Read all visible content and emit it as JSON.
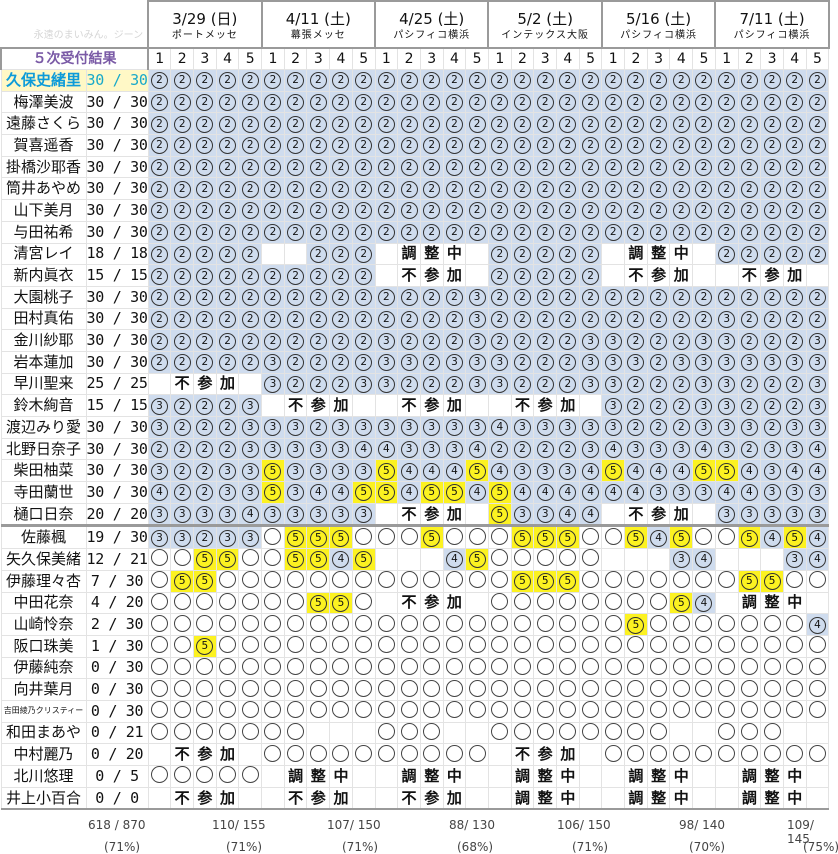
{
  "header": {
    "corner_text": "永遠のまいみん。ジーン",
    "title": "５次受付結果",
    "slot_numbers": [
      "1",
      "2",
      "3",
      "4",
      "5"
    ],
    "events": [
      {
        "date": "3/29 (日)",
        "venue": "ポートメッセ"
      },
      {
        "date": "4/11 (土)",
        "venue": "幕張メッセ"
      },
      {
        "date": "4/25 (土)",
        "venue": "パシフィコ横浜"
      },
      {
        "date": "5/2 (土)",
        "venue": "インテックス大阪"
      },
      {
        "date": "5/16 (土)",
        "venue": "パシフィコ横浜"
      },
      {
        "date": "7/11 (土)",
        "venue": "パシフィコ横浜"
      }
    ]
  },
  "legend": {
    "2": "②",
    "3": "③",
    "4": "④",
    "5": "⑤",
    "o": "",
    "不": "不",
    "参": "参",
    "加": "加",
    "調": "調",
    "整": "整",
    "中": "中"
  },
  "colors": {
    "sold_blue": "#cfdcee",
    "highlight_yellow": "#fcf221",
    "member_highlight_bg": "#fff8c6",
    "member_highlight_text": "#0d9bd9",
    "title_purple": "#7a5aa6"
  },
  "rows": [
    {
      "name": "久保史緒里",
      "score": "30 / 30",
      "highlight": true,
      "cells": [
        "2",
        "2",
        "2",
        "2",
        "2",
        "2",
        "2",
        "2",
        "2",
        "2",
        "2",
        "2",
        "2",
        "2",
        "2",
        "2",
        "2",
        "2",
        "2",
        "2",
        "2",
        "2",
        "2",
        "2",
        "2",
        "2",
        "2",
        "2",
        "2",
        "2"
      ]
    },
    {
      "name": "梅澤美波",
      "score": "30 / 30",
      "cells": [
        "2",
        "2",
        "2",
        "2",
        "2",
        "2",
        "2",
        "2",
        "2",
        "2",
        "2",
        "2",
        "2",
        "2",
        "2",
        "2",
        "2",
        "2",
        "2",
        "2",
        "2",
        "2",
        "2",
        "2",
        "2",
        "2",
        "2",
        "2",
        "2",
        "2"
      ]
    },
    {
      "name": "遠藤さくら",
      "score": "30 / 30",
      "cells": [
        "2",
        "2",
        "2",
        "2",
        "2",
        "2",
        "2",
        "2",
        "2",
        "2",
        "2",
        "2",
        "2",
        "2",
        "2",
        "2",
        "2",
        "2",
        "2",
        "2",
        "2",
        "2",
        "2",
        "2",
        "2",
        "2",
        "2",
        "2",
        "2",
        "2"
      ]
    },
    {
      "name": "賀喜遥香",
      "score": "30 / 30",
      "cells": [
        "2",
        "2",
        "2",
        "2",
        "2",
        "2",
        "2",
        "2",
        "2",
        "2",
        "2",
        "2",
        "2",
        "2",
        "2",
        "2",
        "2",
        "2",
        "2",
        "2",
        "2",
        "2",
        "2",
        "2",
        "2",
        "2",
        "2",
        "2",
        "2",
        "2"
      ]
    },
    {
      "name": "掛橋沙耶香",
      "score": "30 / 30",
      "cells": [
        "2",
        "2",
        "2",
        "2",
        "2",
        "2",
        "2",
        "2",
        "2",
        "2",
        "2",
        "2",
        "2",
        "2",
        "2",
        "2",
        "2",
        "2",
        "2",
        "2",
        "2",
        "2",
        "2",
        "2",
        "2",
        "2",
        "2",
        "2",
        "2",
        "2"
      ]
    },
    {
      "name": "筒井あやめ",
      "score": "30 / 30",
      "cells": [
        "2",
        "2",
        "2",
        "2",
        "2",
        "2",
        "2",
        "2",
        "2",
        "2",
        "2",
        "2",
        "2",
        "2",
        "2",
        "2",
        "2",
        "2",
        "2",
        "2",
        "2",
        "2",
        "2",
        "2",
        "2",
        "2",
        "2",
        "2",
        "2",
        "2"
      ]
    },
    {
      "name": "山下美月",
      "score": "30 / 30",
      "cells": [
        "2",
        "2",
        "2",
        "2",
        "2",
        "2",
        "2",
        "2",
        "2",
        "2",
        "2",
        "2",
        "2",
        "2",
        "2",
        "2",
        "2",
        "2",
        "2",
        "2",
        "2",
        "2",
        "2",
        "2",
        "2",
        "2",
        "2",
        "2",
        "2",
        "2"
      ]
    },
    {
      "name": "与田祐希",
      "score": "30 / 30",
      "cells": [
        "2",
        "2",
        "2",
        "2",
        "2",
        "2",
        "2",
        "2",
        "2",
        "2",
        "2",
        "2",
        "2",
        "2",
        "2",
        "2",
        "2",
        "2",
        "2",
        "2",
        "2",
        "2",
        "2",
        "2",
        "2",
        "2",
        "2",
        "2",
        "2",
        "2"
      ]
    },
    {
      "name": "清宮レイ",
      "score": "18 / 18",
      "cells": [
        "2",
        "2",
        "2",
        "2",
        "2",
        "",
        "",
        "2",
        "2",
        "2",
        "",
        "調",
        "整",
        "中",
        "",
        "2",
        "2",
        "2",
        "2",
        "2",
        "",
        "調",
        "整",
        "中",
        "",
        "2",
        "2",
        "2",
        "2",
        "2"
      ]
    },
    {
      "name": "新内眞衣",
      "score": "15 / 15",
      "cells": [
        "2",
        "2",
        "2",
        "2",
        "2",
        "2",
        "2",
        "2",
        "2",
        "2",
        "",
        "不",
        "参",
        "加",
        "",
        "2",
        "2",
        "2",
        "2",
        "2",
        "",
        "不",
        "参",
        "加",
        "",
        "",
        "不",
        "参",
        "加",
        ""
      ]
    },
    {
      "name": "大園桃子",
      "score": "30 / 30",
      "cells": [
        "2",
        "2",
        "2",
        "2",
        "2",
        "2",
        "2",
        "2",
        "2",
        "2",
        "2",
        "2",
        "2",
        "2",
        "3",
        "2",
        "2",
        "2",
        "2",
        "2",
        "2",
        "2",
        "2",
        "2",
        "2",
        "2",
        "2",
        "2",
        "2",
        "2"
      ]
    },
    {
      "name": "田村真佑",
      "score": "30 / 30",
      "cells": [
        "2",
        "2",
        "2",
        "2",
        "2",
        "2",
        "2",
        "2",
        "2",
        "2",
        "2",
        "2",
        "2",
        "2",
        "3",
        "2",
        "2",
        "2",
        "2",
        "2",
        "2",
        "2",
        "2",
        "2",
        "2",
        "3",
        "2",
        "2",
        "2",
        "2"
      ]
    },
    {
      "name": "金川紗耶",
      "score": "30 / 30",
      "cells": [
        "2",
        "2",
        "2",
        "2",
        "2",
        "2",
        "2",
        "2",
        "2",
        "2",
        "3",
        "2",
        "2",
        "2",
        "3",
        "2",
        "2",
        "2",
        "2",
        "3",
        "3",
        "2",
        "2",
        "2",
        "3",
        "3",
        "2",
        "2",
        "2",
        "3"
      ]
    },
    {
      "name": "岩本蓮加",
      "score": "30 / 30",
      "cells": [
        "2",
        "2",
        "2",
        "2",
        "2",
        "3",
        "2",
        "2",
        "2",
        "2",
        "3",
        "3",
        "2",
        "3",
        "3",
        "3",
        "2",
        "2",
        "2",
        "3",
        "3",
        "3",
        "2",
        "3",
        "3",
        "3",
        "3",
        "3",
        "3",
        "3"
      ]
    },
    {
      "name": "早川聖来",
      "score": "25 / 25",
      "cells": [
        "",
        "不",
        "参",
        "加",
        "",
        "3",
        "2",
        "2",
        "2",
        "3",
        "3",
        "2",
        "2",
        "2",
        "3",
        "3",
        "2",
        "2",
        "2",
        "3",
        "3",
        "2",
        "2",
        "2",
        "3",
        "3",
        "2",
        "2",
        "2",
        "3"
      ]
    },
    {
      "name": "鈴木絢音",
      "score": "15 / 15",
      "cells": [
        "3",
        "2",
        "2",
        "2",
        "3",
        "",
        "不",
        "参",
        "加",
        "",
        "",
        "不",
        "参",
        "加",
        "",
        "",
        "不",
        "参",
        "加",
        "",
        "3",
        "2",
        "2",
        "2",
        "3",
        "3",
        "2",
        "2",
        "2",
        "3"
      ]
    },
    {
      "name": "渡辺みり愛",
      "score": "30 / 30",
      "cells": [
        "3",
        "2",
        "2",
        "2",
        "3",
        "3",
        "3",
        "2",
        "3",
        "3",
        "3",
        "3",
        "3",
        "3",
        "3",
        "4",
        "3",
        "3",
        "3",
        "3",
        "3",
        "2",
        "2",
        "2",
        "3",
        "3",
        "3",
        "2",
        "3",
        "3"
      ]
    },
    {
      "name": "北野日奈子",
      "score": "30 / 30",
      "cells": [
        "2",
        "2",
        "2",
        "2",
        "3",
        "3",
        "3",
        "3",
        "3",
        "4",
        "4",
        "3",
        "3",
        "3",
        "4",
        "2",
        "2",
        "2",
        "2",
        "3",
        "4",
        "3",
        "3",
        "3",
        "4",
        "3",
        "2",
        "3",
        "3",
        "4"
      ]
    },
    {
      "name": "柴田柚菜",
      "score": "30 / 30",
      "cells": [
        "3",
        "2",
        "2",
        "3",
        "3",
        "5",
        "3",
        "3",
        "3",
        "3",
        "5",
        "4",
        "4",
        "4",
        "5",
        "4",
        "3",
        "3",
        "3",
        "4",
        "5",
        "4",
        "4",
        "4",
        "5",
        "5",
        "4",
        "3",
        "4",
        "4"
      ]
    },
    {
      "name": "寺田蘭世",
      "score": "30 / 30",
      "cells": [
        "4",
        "2",
        "2",
        "3",
        "3",
        "5",
        "3",
        "4",
        "4",
        "5",
        "5",
        "4",
        "5",
        "5",
        "4",
        "5",
        "4",
        "4",
        "4",
        "4",
        "4",
        "4",
        "3",
        "3",
        "3",
        "4",
        "4",
        "3",
        "3",
        "3"
      ]
    },
    {
      "name": "樋口日奈",
      "score": "20 / 20",
      "sep": true,
      "cells": [
        "3",
        "3",
        "3",
        "3",
        "4",
        "3",
        "3",
        "3",
        "3",
        "3",
        "",
        "不",
        "参",
        "加",
        "",
        "5",
        "3",
        "3",
        "4",
        "4",
        "",
        "不",
        "参",
        "加",
        "",
        "3",
        "3",
        "3",
        "3",
        "3"
      ]
    },
    {
      "name": "佐藤楓",
      "score": "19 / 30",
      "cells": [
        "3",
        "3",
        "2",
        "3",
        "3",
        "o",
        "5",
        "5",
        "5",
        "o",
        "o",
        "o",
        "5",
        "o",
        "o",
        "o",
        "5",
        "5",
        "5",
        "o",
        "o",
        "5",
        "4",
        "5",
        "o",
        "o",
        "5",
        "4",
        "5",
        "4"
      ]
    },
    {
      "name": "矢久保美緒",
      "score": "12 / 21",
      "cells": [
        "o",
        "o",
        "5",
        "5",
        "o",
        "o",
        "5",
        "5",
        "4",
        "5",
        "",
        "",
        "",
        "4",
        "5",
        "o",
        "o",
        "o",
        "o",
        "o",
        "",
        "",
        "",
        "3",
        "4",
        "",
        "",
        "",
        "3",
        "4"
      ]
    },
    {
      "name": "伊藤理々杏",
      "score": "7 / 30",
      "cells": [
        "o",
        "5",
        "5",
        "o",
        "o",
        "o",
        "o",
        "o",
        "o",
        "o",
        "o",
        "o",
        "o",
        "o",
        "o",
        "o",
        "5",
        "5",
        "5",
        "o",
        "o",
        "o",
        "o",
        "o",
        "o",
        "o",
        "5",
        "5",
        "o",
        "o"
      ]
    },
    {
      "name": "中田花奈",
      "score": "4 / 20",
      "cells": [
        "o",
        "o",
        "o",
        "o",
        "o",
        "o",
        "o",
        "5",
        "5",
        "o",
        "",
        "不",
        "参",
        "加",
        "",
        "o",
        "o",
        "o",
        "o",
        "o",
        "o",
        "o",
        "o",
        "5",
        "4",
        "",
        "調",
        "整",
        "中",
        ""
      ]
    },
    {
      "name": "山崎怜奈",
      "score": "2 / 30",
      "cells": [
        "o",
        "o",
        "o",
        "o",
        "o",
        "o",
        "o",
        "o",
        "o",
        "o",
        "o",
        "o",
        "o",
        "o",
        "o",
        "o",
        "o",
        "o",
        "o",
        "o",
        "o",
        "5",
        "o",
        "o",
        "o",
        "o",
        "o",
        "o",
        "o",
        "4"
      ]
    },
    {
      "name": "阪口珠美",
      "score": "1 / 30",
      "cells": [
        "o",
        "o",
        "5",
        "o",
        "o",
        "o",
        "o",
        "o",
        "o",
        "o",
        "o",
        "o",
        "o",
        "o",
        "o",
        "o",
        "o",
        "o",
        "o",
        "o",
        "o",
        "o",
        "o",
        "o",
        "o",
        "o",
        "o",
        "o",
        "o",
        "o"
      ]
    },
    {
      "name": "伊藤純奈",
      "score": "0 / 30",
      "cells": [
        "o",
        "o",
        "o",
        "o",
        "o",
        "o",
        "o",
        "o",
        "o",
        "o",
        "o",
        "o",
        "o",
        "o",
        "o",
        "o",
        "o",
        "o",
        "o",
        "o",
        "o",
        "o",
        "o",
        "o",
        "o",
        "o",
        "o",
        "o",
        "o",
        "o"
      ]
    },
    {
      "name": "向井葉月",
      "score": "0 / 30",
      "cells": [
        "o",
        "o",
        "o",
        "o",
        "o",
        "o",
        "o",
        "o",
        "o",
        "o",
        "o",
        "o",
        "o",
        "o",
        "o",
        "o",
        "o",
        "o",
        "o",
        "o",
        "o",
        "o",
        "o",
        "o",
        "o",
        "o",
        "o",
        "o",
        "o",
        "o"
      ]
    },
    {
      "name": "吉田綾乃クリスティー",
      "score": "0 / 30",
      "small": true,
      "cells": [
        "o",
        "o",
        "o",
        "o",
        "o",
        "o",
        "o",
        "o",
        "o",
        "o",
        "o",
        "o",
        "o",
        "o",
        "o",
        "o",
        "o",
        "o",
        "o",
        "o",
        "o",
        "o",
        "o",
        "o",
        "o",
        "o",
        "o",
        "o",
        "o",
        "o"
      ]
    },
    {
      "name": "和田まあや",
      "score": "0 / 21",
      "cells": [
        "o",
        "o",
        "o",
        "o",
        "o",
        "o",
        "o",
        "",
        "",
        "",
        "o",
        "o",
        "o",
        "",
        "",
        "o",
        "o",
        "o",
        "o",
        "o",
        "o",
        "o",
        "o",
        "",
        "",
        "o",
        "o",
        "o",
        "",
        ""
      ]
    },
    {
      "name": "中村麗乃",
      "score": "0 / 20",
      "cells": [
        "",
        "不",
        "参",
        "加",
        "",
        "o",
        "o",
        "o",
        "o",
        "o",
        "o",
        "o",
        "o",
        "o",
        "o",
        "",
        "不",
        "参",
        "加",
        "",
        "o",
        "o",
        "o",
        "o",
        "o",
        "o",
        "o",
        "o",
        "o",
        "o"
      ]
    },
    {
      "name": "北川悠理",
      "score": "0 / 5",
      "cells": [
        "o",
        "o",
        "o",
        "o",
        "o",
        "",
        "調",
        "整",
        "中",
        "",
        "",
        "調",
        "整",
        "中",
        "",
        "",
        "調",
        "整",
        "中",
        "",
        "",
        "調",
        "整",
        "中",
        "",
        "",
        "調",
        "整",
        "中",
        ""
      ]
    },
    {
      "name": "井上小百合",
      "score": "0 / 0",
      "last": true,
      "cells": [
        "",
        "不",
        "参",
        "加",
        "",
        "",
        "不",
        "参",
        "加",
        "",
        "",
        "不",
        "参",
        "加",
        "",
        "",
        "調",
        "整",
        "中",
        "",
        "",
        "調",
        "整",
        "中",
        "",
        "",
        "調",
        "整",
        "中",
        ""
      ]
    }
  ],
  "footer": {
    "total": "618 / 870",
    "total_pct": "(71%)",
    "events": [
      {
        "sum": "110/ 155",
        "pct": "(71%)"
      },
      {
        "sum": "107/ 150",
        "pct": "(71%)"
      },
      {
        "sum": "88/ 130",
        "pct": "(68%)"
      },
      {
        "sum": "106/ 150",
        "pct": "(71%)"
      },
      {
        "sum": "98/ 140",
        "pct": "(70%)"
      },
      {
        "sum": "109/ 145",
        "pct": "(75%)"
      }
    ]
  }
}
